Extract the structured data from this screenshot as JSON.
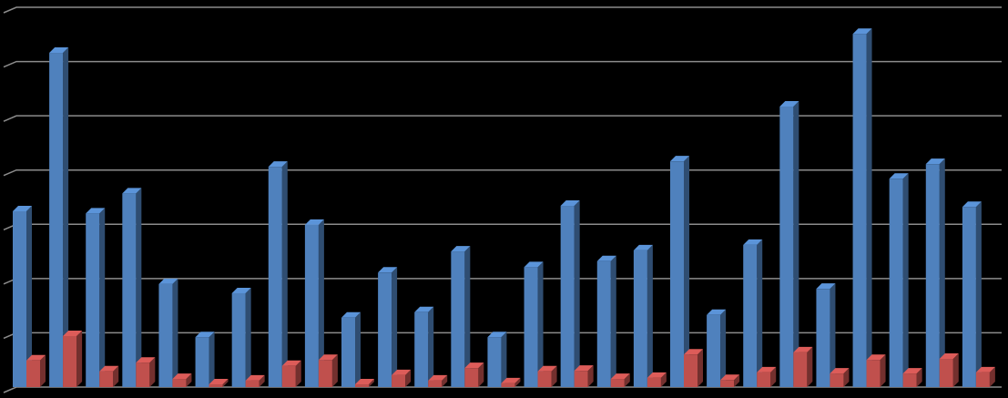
{
  "chart_data": {
    "type": "bar",
    "categories": [
      null,
      null,
      null,
      null,
      null,
      null,
      null,
      null,
      null,
      null,
      null,
      null,
      null,
      null,
      null,
      null,
      null,
      null,
      null,
      null,
      null,
      null,
      null,
      null,
      null,
      null,
      null
    ],
    "series": [
      {
        "color": "#4f81bd",
        "values": [
          3.24,
          6.16,
          3.2,
          3.57,
          1.9,
          0.92,
          1.73,
          4.06,
          2.99,
          1.28,
          2.11,
          1.38,
          2.5,
          0.92,
          2.21,
          3.34,
          2.32,
          2.52,
          4.16,
          1.33,
          2.62,
          5.17,
          1.81,
          6.51,
          3.84,
          4.11,
          3.32
        ]
      },
      {
        "color": "#c0504d",
        "values": [
          0.49,
          0.94,
          0.29,
          0.45,
          0.15,
          0.05,
          0.12,
          0.39,
          0.5,
          0.05,
          0.22,
          0.12,
          0.35,
          0.07,
          0.29,
          0.3,
          0.15,
          0.17,
          0.6,
          0.13,
          0.27,
          0.64,
          0.25,
          0.5,
          0.25,
          0.52,
          0.27
        ]
      }
    ],
    "ylim": [
      0,
      7
    ],
    "yticks": [
      0,
      1,
      2,
      3,
      4,
      5,
      6,
      7
    ],
    "grid": true
  }
}
